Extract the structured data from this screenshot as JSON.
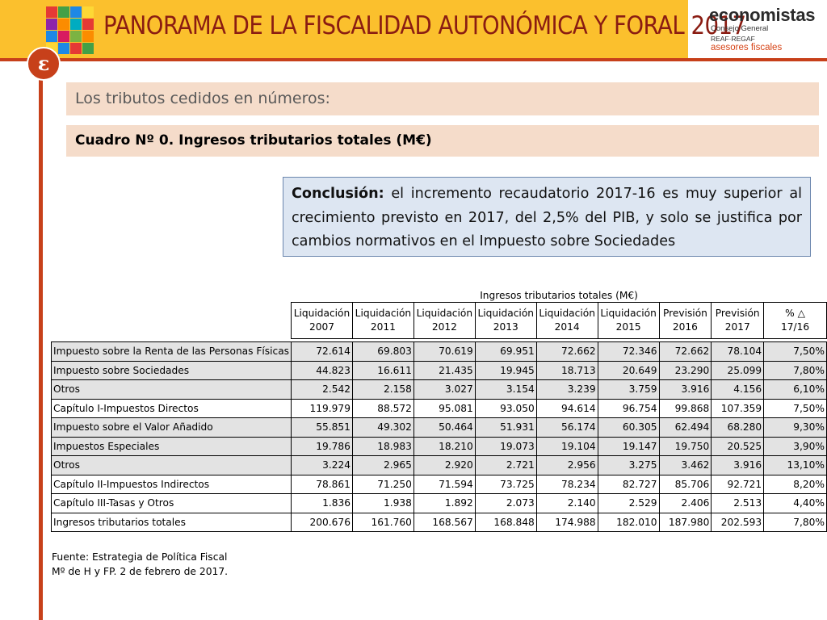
{
  "header": {
    "title": "PANORAMA DE LA FISCALIDAD AUTONÓMICA Y FORAL 2017",
    "brand": "economistas",
    "brand_sub": "Consejo General",
    "brand_reaf": "REAF·REGAF",
    "brand_asesores": "asesores fiscales",
    "badge_glyph": "ε",
    "colors": {
      "header_bg": "#fbc02d",
      "title": "#8a1c12",
      "accent_red": "#c7401a",
      "section_bg": "#f5dcca",
      "conclusion_bg": "#dde6f2"
    }
  },
  "section_title": "Los tributos cedidos en números:",
  "table_title": "Cuadro Nº 0. Ingresos tributarios totales (M€)",
  "conclusion": {
    "label": "Conclusión:",
    "text": " el incremento recaudatorio 2017-16 es muy superior al crecimiento previsto en 2017, del 2,5% del PIB, y solo se justifica por cambios normativos en el Impuesto sobre Sociedades"
  },
  "table": {
    "caption": "Ingresos tributarios totales (M€)",
    "columns": [
      [
        "Liquidación",
        "2007"
      ],
      [
        "Liquidación",
        "2011"
      ],
      [
        "Liquidación",
        "2012"
      ],
      [
        "Liquidación",
        "2013"
      ],
      [
        "Liquidación",
        "2014"
      ],
      [
        "Liquidación",
        "2015"
      ],
      [
        "Previsión",
        "2016"
      ],
      [
        "Previsión",
        "2017"
      ],
      [
        "% △",
        "17/16"
      ]
    ],
    "rows": [
      {
        "label": "Impuesto sobre la Renta de las Personas Físicas",
        "values": [
          "72.614",
          "69.803",
          "70.619",
          "69.951",
          "72.662",
          "72.346",
          "72.662",
          "78.104",
          "7,50%"
        ],
        "shaded": true
      },
      {
        "label": "Impuesto sobre Sociedades",
        "values": [
          "44.823",
          "16.611",
          "21.435",
          "19.945",
          "18.713",
          "20.649",
          "23.290",
          "25.099",
          "7,80%"
        ],
        "shaded": true
      },
      {
        "label": "Otros",
        "values": [
          "2.542",
          "2.158",
          "3.027",
          "3.154",
          "3.239",
          "3.759",
          "3.916",
          "4.156",
          "6,10%"
        ],
        "shaded": true
      },
      {
        "label": "Capítulo I-Impuestos Directos",
        "values": [
          "119.979",
          "88.572",
          "95.081",
          "93.050",
          "94.614",
          "96.754",
          "99.868",
          "107.359",
          "7,50%"
        ],
        "shaded": false
      },
      {
        "label": "Impuesto sobre el Valor Añadido",
        "values": [
          "55.851",
          "49.302",
          "50.464",
          "51.931",
          "56.174",
          "60.305",
          "62.494",
          "68.280",
          "9,30%"
        ],
        "shaded": true
      },
      {
        "label": "Impuestos Especiales",
        "values": [
          "19.786",
          "18.983",
          "18.210",
          "19.073",
          "19.104",
          "19.147",
          "19.750",
          "20.525",
          "3,90%"
        ],
        "shaded": true
      },
      {
        "label": "Otros",
        "values": [
          "3.224",
          "2.965",
          "2.920",
          "2.721",
          "2.956",
          "3.275",
          "3.462",
          "3.916",
          "13,10%"
        ],
        "shaded": true
      },
      {
        "label": "Capítulo II-Impuestos Indirectos",
        "values": [
          "78.861",
          "71.250",
          "71.594",
          "73.725",
          "78.234",
          "82.727",
          "85.706",
          "92.721",
          "8,20%"
        ],
        "shaded": false
      },
      {
        "label": "Capítulo III-Tasas y Otros",
        "values": [
          "1.836",
          "1.938",
          "1.892",
          "2.073",
          "2.140",
          "2.529",
          "2.406",
          "2.513",
          "4,40%"
        ],
        "shaded": false
      },
      {
        "label": "Ingresos tributarios totales",
        "values": [
          "200.676",
          "161.760",
          "168.567",
          "168.848",
          "174.988",
          "182.010",
          "187.980",
          "202.593",
          "7,80%"
        ],
        "shaded": false
      }
    ]
  },
  "footer": {
    "line1": "Fuente: Estrategia de Política Fiscal",
    "line2": "Mº de H y FP. 2 de febrero de 2017."
  }
}
